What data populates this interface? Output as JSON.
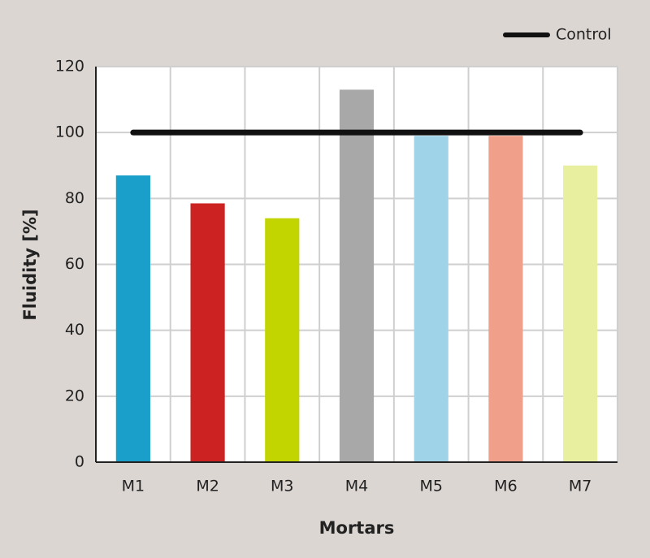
{
  "chart_data": {
    "type": "bar",
    "x_label": "Mortars",
    "y_label": "Fluidity [%]",
    "categories": [
      "M1",
      "M2",
      "M3",
      "M4",
      "M5",
      "M6",
      "M7"
    ],
    "values": [
      87,
      78.5,
      74,
      113,
      99,
      99,
      90
    ],
    "colors": [
      "#1a9fca",
      "#cc2222",
      "#c3d500",
      "#a8a8a8",
      "#9fd4e8",
      "#f0a08a",
      "#e8f0a0"
    ],
    "series": [
      {
        "name": "Control",
        "type": "line",
        "color": "#111111",
        "values": [
          100,
          100,
          100,
          100,
          100,
          100,
          100
        ]
      }
    ],
    "ylim": [
      0,
      120
    ],
    "yticks": [
      0,
      20,
      40,
      60,
      80,
      100,
      120
    ],
    "grid": true,
    "legend": "top-right"
  }
}
